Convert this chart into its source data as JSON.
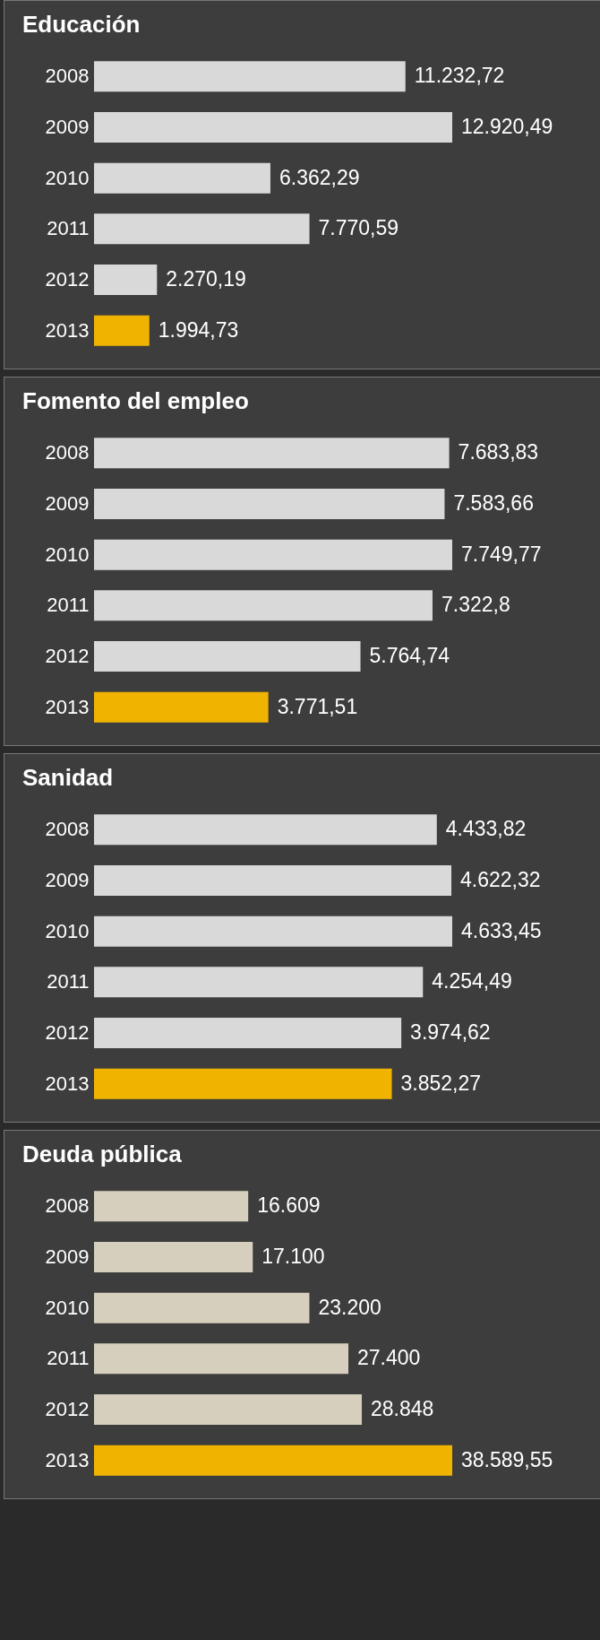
{
  "chart_data": [
    {
      "type": "bar",
      "orientation": "horizontal",
      "title": "Educación",
      "categories": [
        "2008",
        "2009",
        "2010",
        "2011",
        "2012",
        "2013"
      ],
      "values": [
        11232.72,
        12920.49,
        6362.29,
        7770.59,
        2270.19,
        1994.73
      ],
      "colors": [
        "#d9d9d9",
        "#d9d9d9",
        "#d9d9d9",
        "#d9d9d9",
        "#d9d9d9",
        "#f0b400"
      ],
      "value_labels": [
        "11.232,72",
        "12.920,49",
        "6.362,29",
        "7.770,59",
        "2.270,19",
        "1.994,73"
      ]
    },
    {
      "type": "bar",
      "orientation": "horizontal",
      "title": "Fomento del empleo",
      "categories": [
        "2008",
        "2009",
        "2010",
        "2011",
        "2012",
        "2013"
      ],
      "values": [
        7683.83,
        7583.66,
        7749.77,
        7322.8,
        5764.74,
        3771.51
      ],
      "colors": [
        "#d9d9d9",
        "#d9d9d9",
        "#d9d9d9",
        "#d9d9d9",
        "#d9d9d9",
        "#f0b400"
      ],
      "value_labels": [
        "7.683,83",
        "7.583,66",
        "7.749,77",
        "7.322,8",
        "5.764,74",
        "3.771,51"
      ]
    },
    {
      "type": "bar",
      "orientation": "horizontal",
      "title": "Sanidad",
      "categories": [
        "2008",
        "2009",
        "2010",
        "2011",
        "2012",
        "2013"
      ],
      "values": [
        4433.82,
        4622.32,
        4633.45,
        4254.49,
        3974.62,
        3852.27
      ],
      "colors": [
        "#d9d9d9",
        "#d9d9d9",
        "#d9d9d9",
        "#d9d9d9",
        "#d9d9d9",
        "#f0b400"
      ],
      "value_labels": [
        "4.433,82",
        "4.622,32",
        "4.633,45",
        "4.254,49",
        "3.974,62",
        "3.852,27"
      ]
    },
    {
      "type": "bar",
      "orientation": "horizontal",
      "title": "Deuda pública",
      "categories": [
        "2008",
        "2009",
        "2010",
        "2011",
        "2012",
        "2013"
      ],
      "values": [
        16609,
        17100,
        23200,
        27400,
        28848,
        38589.55
      ],
      "colors": [
        "#d6cfbd",
        "#d6cfbd",
        "#d6cfbd",
        "#d6cfbd",
        "#d6cfbd",
        "#f0b400"
      ],
      "value_labels": [
        "16.609",
        "17.100",
        "23.200",
        "27.400",
        "28.848",
        "38.589,55"
      ]
    }
  ]
}
